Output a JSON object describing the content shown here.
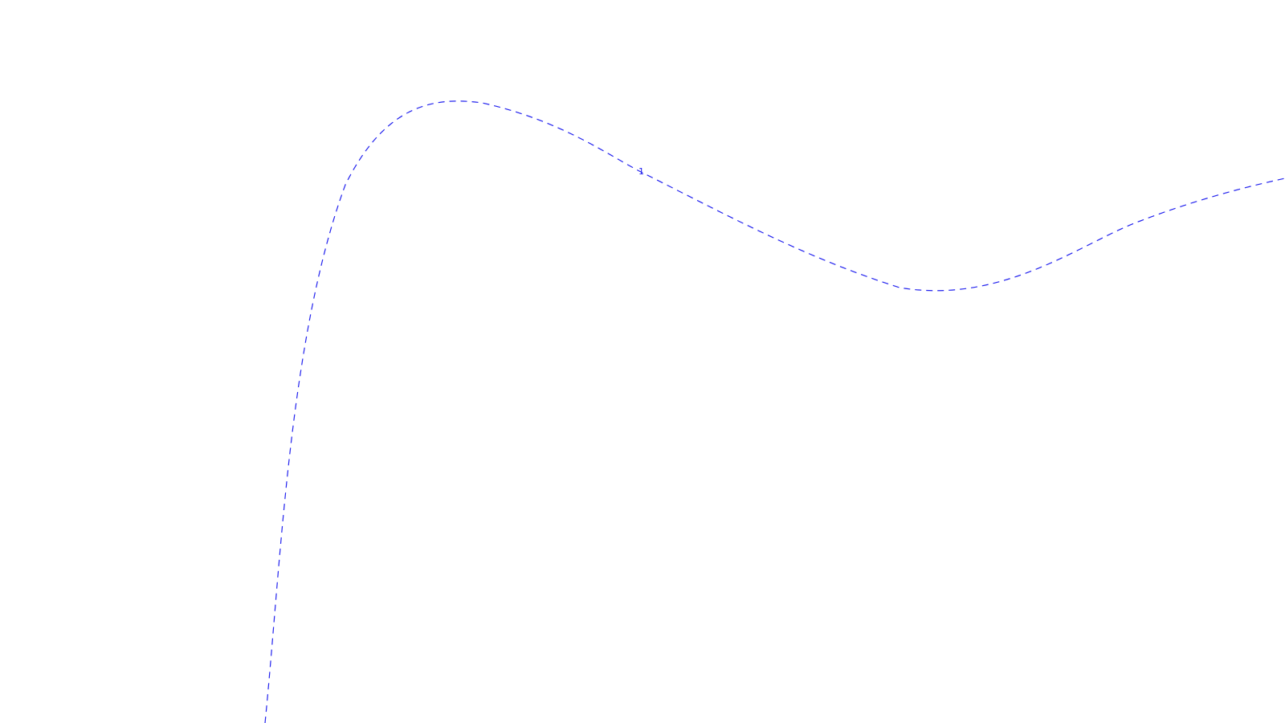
{
  "drawing": {
    "curve_label": "1",
    "curve_color": "#2222ee",
    "line_style": "dashed"
  }
}
